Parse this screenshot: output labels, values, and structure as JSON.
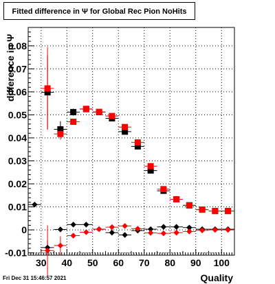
{
  "footer_text": "Fri Dec 31 15:46:57 2021",
  "chart_data": {
    "type": "scatter",
    "title": "Fitted difference in  Ψ  for Global Rec Pion NoHits",
    "xlabel": "Quality",
    "ylabel": "difference in Ψ",
    "xlim": [
      25,
      105
    ],
    "ylim": [
      -0.011,
      0.088
    ],
    "x_ticks": [
      30,
      40,
      50,
      60,
      70,
      80,
      90,
      100
    ],
    "y_ticks": [
      -0.01,
      0,
      0.01,
      0.02,
      0.03,
      0.04,
      0.05,
      0.06,
      0.07,
      0.08
    ],
    "y_tick_labels": [
      "-0.01",
      "0",
      "0.01",
      "0.02",
      "0.03",
      "0.04",
      "0.05",
      "0.06",
      "0.07",
      "0.08"
    ],
    "grid": true,
    "series": [
      {
        "marker": "square",
        "color": "#000000",
        "x": [
          32.5,
          37.5,
          42.5,
          47.5,
          52.5,
          57.5,
          62.5,
          67.5,
          72.5,
          77.5,
          82.5,
          87.5,
          92.5,
          97.5,
          102.5
        ],
        "y": [
          0.0598,
          0.0437,
          0.0512,
          0.0525,
          0.0512,
          0.0485,
          0.0427,
          0.0363,
          0.0258,
          0.017,
          0.0133,
          0.0107,
          0.0088,
          0.0082,
          0.0082
        ],
        "err": [
          0.016,
          0.0035,
          0.0015,
          0.0008,
          0.0006,
          0.0006,
          0.0008,
          0.0009,
          0.001,
          0.0007,
          0.0006,
          0.0005,
          0.0005,
          0.0005,
          0.0005
        ]
      },
      {
        "marker": "square",
        "color": "#ff0000",
        "x": [
          32.5,
          37.5,
          42.5,
          47.5,
          52.5,
          57.5,
          62.5,
          67.5,
          72.5,
          77.5,
          82.5,
          87.5,
          92.5,
          97.5,
          102.5
        ],
        "y": [
          0.0615,
          0.0417,
          0.047,
          0.0526,
          0.0513,
          0.0495,
          0.0447,
          0.038,
          0.0277,
          0.0177,
          0.0133,
          0.0106,
          0.0088,
          0.0082,
          0.0082
        ],
        "err": [
          0.018,
          0.0025,
          0.0012,
          0.0008,
          0.0006,
          0.0006,
          0.0008,
          0.0009,
          0.001,
          0.0007,
          0.0006,
          0.0005,
          0.0005,
          0.0005,
          0.0005
        ]
      },
      {
        "marker": "diamond",
        "color": "#000000",
        "x": [
          27.5,
          32.5,
          37.5,
          42.5,
          47.5,
          52.5,
          57.5,
          62.5,
          67.5,
          72.5,
          77.5,
          82.5,
          87.5,
          92.5,
          97.5,
          102.5
        ],
        "y": [
          0.011,
          -0.0077,
          0.0002,
          0.0023,
          0.0023,
          0.0003,
          -0.0012,
          -0.0022,
          -0.0003,
          0.0003,
          0.0013,
          0.0013,
          0.001,
          0.0003,
          0.0003,
          0.0003
        ],
        "err": [
          0.0,
          0.003,
          0.001,
          0.0008,
          0.0005,
          0.0005,
          0.0005,
          0.0005,
          0.0005,
          0.0005,
          0.0004,
          0.0004,
          0.0004,
          0.0004,
          0.0004,
          0.0004
        ]
      },
      {
        "marker": "diamond",
        "color": "#ff0000",
        "x": [
          32.5,
          37.5,
          42.5,
          47.5,
          52.5,
          57.5,
          62.5,
          67.5,
          72.5,
          77.5,
          82.5,
          87.5,
          92.5,
          97.5,
          102.5
        ],
        "y": [
          -0.009,
          -0.0068,
          -0.0025,
          -0.001,
          0.0003,
          0.0012,
          0.0017,
          0.0005,
          -0.0013,
          -0.0015,
          -0.0012,
          -0.0007,
          -0.0002,
          0.0,
          0.0
        ],
        "err": [
          0.011,
          0.004,
          0.001,
          0.0006,
          0.0005,
          0.0005,
          0.0005,
          0.0005,
          0.0005,
          0.0005,
          0.0004,
          0.0004,
          0.0004,
          0.0004,
          0.0004
        ]
      }
    ]
  }
}
